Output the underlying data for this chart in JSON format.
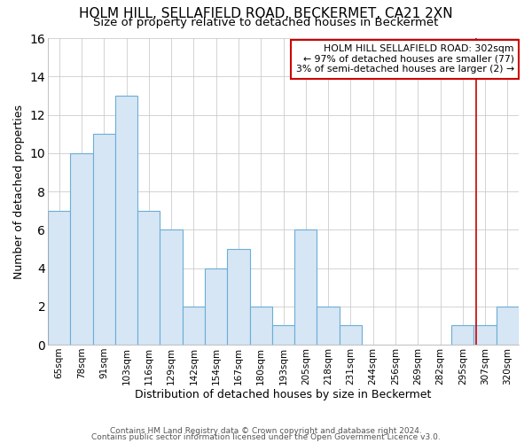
{
  "title": "HOLM HILL, SELLAFIELD ROAD, BECKERMET, CA21 2XN",
  "subtitle": "Size of property relative to detached houses in Beckermet",
  "xlabel": "Distribution of detached houses by size in Beckermet",
  "ylabel": "Number of detached properties",
  "categories": [
    "65sqm",
    "78sqm",
    "91sqm",
    "103sqm",
    "116sqm",
    "129sqm",
    "142sqm",
    "154sqm",
    "167sqm",
    "180sqm",
    "193sqm",
    "205sqm",
    "218sqm",
    "231sqm",
    "244sqm",
    "256sqm",
    "269sqm",
    "282sqm",
    "295sqm",
    "307sqm",
    "320sqm"
  ],
  "values": [
    7,
    10,
    11,
    13,
    7,
    6,
    2,
    4,
    5,
    2,
    1,
    6,
    2,
    1,
    0,
    0,
    0,
    0,
    1,
    1,
    2
  ],
  "bar_color": "#d6e6f5",
  "bar_edge_color": "#6aaed6",
  "grid_color": "#cccccc",
  "background_color": "#ffffff",
  "red_line_x": 18.6,
  "legend_title": "HOLM HILL SELLAFIELD ROAD: 302sqm",
  "legend_line1": "← 97% of detached houses are smaller (77)",
  "legend_line2": "3% of semi-detached houses are larger (2) →",
  "red_line_color": "#cc0000",
  "ylim": [
    0,
    16
  ],
  "yticks": [
    0,
    2,
    4,
    6,
    8,
    10,
    12,
    14,
    16
  ],
  "footer1": "Contains HM Land Registry data © Crown copyright and database right 2024.",
  "footer2": "Contains public sector information licensed under the Open Government Licence v3.0.",
  "title_fontsize": 11,
  "subtitle_fontsize": 9.5,
  "ylabel_fontsize": 9,
  "xlabel_fontsize": 9
}
